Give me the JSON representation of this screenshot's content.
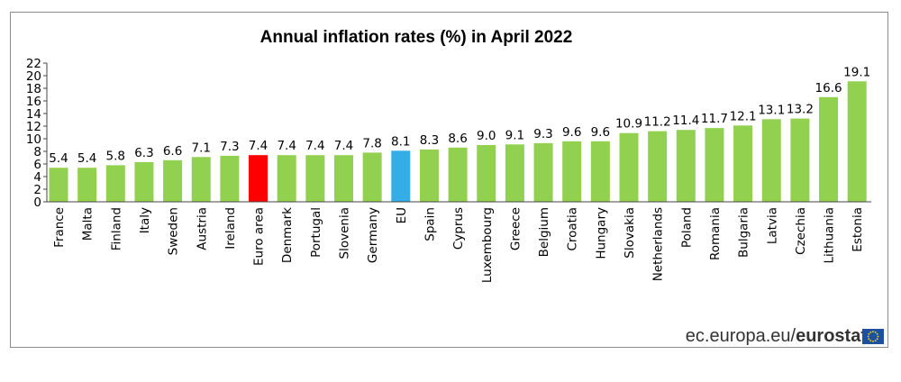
{
  "chart_data": {
    "type": "bar",
    "title": "Annual inflation rates (%) in April 2022",
    "xlabel": "",
    "ylabel": "",
    "ylim": [
      0,
      22
    ],
    "yticks": [
      "0",
      "2",
      "4",
      "6",
      "8",
      "10",
      "12",
      "14",
      "16",
      "18",
      "20",
      "22"
    ],
    "categories": [
      "France",
      "Malta",
      "Finland",
      "Italy",
      "Sweden",
      "Austria",
      "Ireland",
      "Euro area",
      "Denmark",
      "Portugal",
      "Slovenia",
      "Germany",
      "EU",
      "Spain",
      "Cyprus",
      "Luxembourg",
      "Greece",
      "Belgium",
      "Croatia",
      "Hungary",
      "Slovakia",
      "Netherlands",
      "Poland",
      "Romania",
      "Bulgaria",
      "Latvia",
      "Czechia",
      "Lithuania",
      "Estonia"
    ],
    "values": [
      5.4,
      5.4,
      5.8,
      6.3,
      6.6,
      7.1,
      7.3,
      7.4,
      7.4,
      7.4,
      7.4,
      7.8,
      8.1,
      8.3,
      8.6,
      9.0,
      9.1,
      9.3,
      9.6,
      9.6,
      10.9,
      11.2,
      11.4,
      11.7,
      12.1,
      13.1,
      13.2,
      16.6,
      19.1
    ],
    "value_labels": [
      "5.4",
      "5.4",
      "5.8",
      "6.3",
      "6.6",
      "7.1",
      "7.3",
      "7.4",
      "7.4",
      "7.4",
      "7.4",
      "7.8",
      "8.1",
      "8.3",
      "8.6",
      "9.0",
      "9.1",
      "9.3",
      "9.6",
      "9.6",
      "10.9",
      "11.2",
      "11.4",
      "11.7",
      "12.1",
      "13.1",
      "13.2",
      "16.6",
      "19.1"
    ],
    "colors": {
      "default": "#92d050",
      "highlight": {
        "Euro area": "#ff0000",
        "EU": "#33aee6"
      }
    }
  },
  "source": {
    "prefix": "ec.europa.eu/",
    "brand": "eurostat"
  },
  "flag_color": "#1f4fa3",
  "star_color": "#ffdd00"
}
